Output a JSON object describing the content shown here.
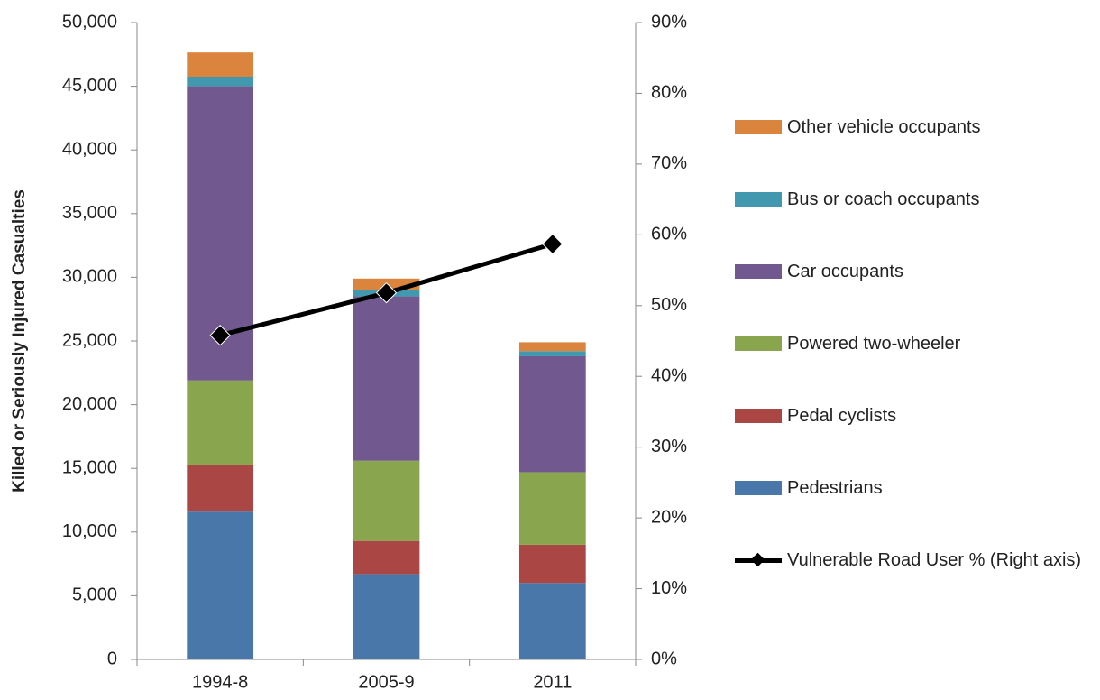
{
  "chart_data": {
    "type": "stacked-bar-line",
    "y_label": "Killed or Seriously Injured Casualties",
    "categories": [
      "1994-8",
      "2005-9",
      "2011"
    ],
    "series": [
      {
        "name": "Pedestrians",
        "color": "#4a77aa",
        "values": [
          11600,
          6700,
          6000
        ]
      },
      {
        "name": "Pedal cyclists",
        "color": "#aa4643",
        "values": [
          3700,
          2600,
          3000
        ]
      },
      {
        "name": "Powered two-wheeler",
        "color": "#89a54e",
        "values": [
          6600,
          6300,
          5700
        ]
      },
      {
        "name": "Car occupants",
        "color": "#71588f",
        "values": [
          23100,
          12900,
          9100
        ]
      },
      {
        "name": "Bus or coach occupants",
        "color": "#4198af",
        "values": [
          750,
          500,
          400
        ]
      },
      {
        "name": "Other vehicle occupants",
        "color": "#db843d",
        "values": [
          1900,
          900,
          700
        ]
      },
      {
        "name": "Vulnerable Road User % (Right axis)",
        "color": "#000000",
        "type": "line",
        "axis": "y2",
        "values": [
          45.8,
          51.8,
          58.7
        ]
      }
    ],
    "ylim": [
      0,
      50000
    ],
    "yticks": [
      0,
      {
        "value": 5000,
        "label": "5,000"
      },
      {
        "value": 10000,
        "label": "10,000"
      },
      {
        "value": 15000,
        "label": "15,000"
      },
      {
        "value": 20000,
        "label": "20,000"
      },
      {
        "value": 25000,
        "label": "25,000"
      },
      {
        "value": 30000,
        "label": "30,000"
      },
      {
        "value": 35000,
        "label": "35,000"
      },
      {
        "value": 40000,
        "label": "40,000"
      },
      {
        "value": 45000,
        "label": "45,000"
      },
      {
        "value": 50000,
        "label": "50,000"
      }
    ],
    "y2lim": [
      0,
      90
    ],
    "y2ticks": [
      {
        "value": 0,
        "label": "0%"
      },
      {
        "value": 10,
        "label": "10%"
      },
      {
        "value": 20,
        "label": "20%"
      },
      {
        "value": 30,
        "label": "30%"
      },
      {
        "value": 40,
        "label": "40%"
      },
      {
        "value": 50,
        "label": "50%"
      },
      {
        "value": 60,
        "label": "60%"
      },
      {
        "value": 70,
        "label": "70%"
      },
      {
        "value": 80,
        "label": "80%"
      },
      {
        "value": 90,
        "label": "90%"
      }
    ],
    "grid": false,
    "legend": "right"
  }
}
